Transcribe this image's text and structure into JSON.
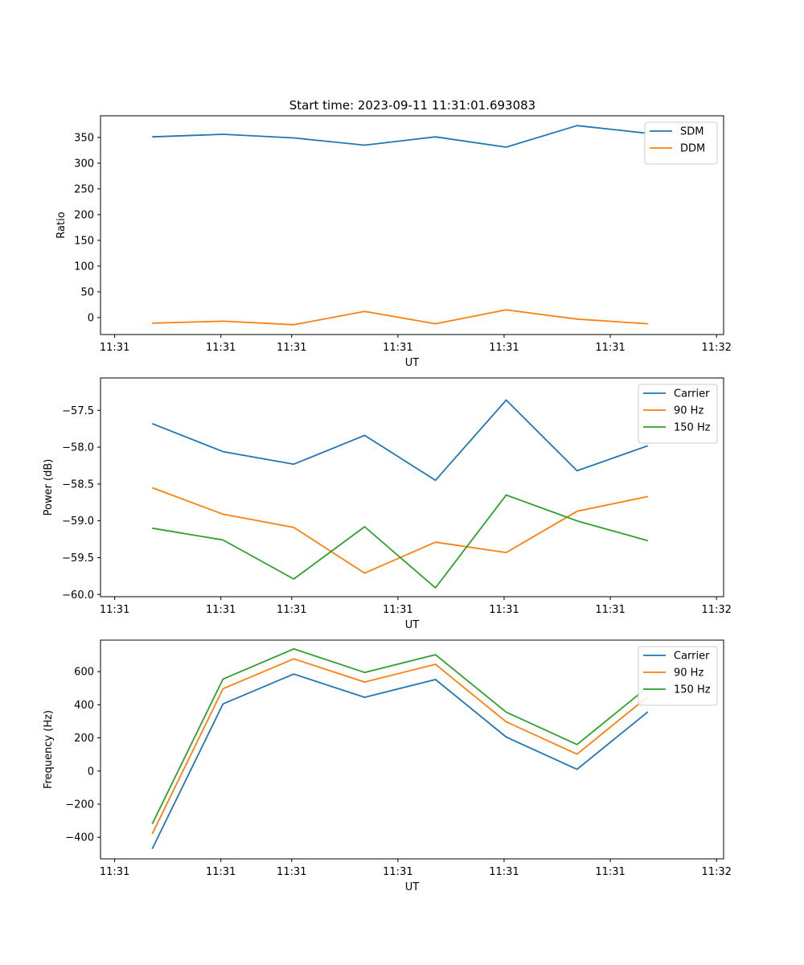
{
  "figure": {
    "title": "Start time: 2023-09-11 11:31:01.693083"
  },
  "colors": {
    "blue": "#1f77b4",
    "orange": "#ff7f0e",
    "green": "#2ca02c"
  },
  "chart_data": [
    {
      "type": "line",
      "title": "Start time: 2023-09-11 11:31:01.693083",
      "xlabel": "UT",
      "ylabel": "Ratio",
      "x": [
        1,
        2,
        3,
        4,
        5,
        6,
        7,
        8
      ],
      "xlim": [
        0.27,
        9.07
      ],
      "ylim": [
        -33,
        392
      ],
      "xticks": [
        {
          "value": 0.47,
          "label": "11:31"
        },
        {
          "value": 1.97,
          "label": "11:31"
        },
        {
          "value": 2.97,
          "label": "11:31"
        },
        {
          "value": 4.47,
          "label": "11:31"
        },
        {
          "value": 5.97,
          "label": "11:31"
        },
        {
          "value": 7.47,
          "label": "11:31"
        },
        {
          "value": 8.97,
          "label": "11:32"
        }
      ],
      "yticks": [
        0,
        50,
        100,
        150,
        200,
        250,
        300,
        350
      ],
      "legend_position": "top-right",
      "series": [
        {
          "name": "SDM",
          "color": "#1f77b4",
          "values": [
            351,
            356,
            349,
            335,
            351,
            331,
            373,
            358
          ]
        },
        {
          "name": "DDM",
          "color": "#ff7f0e",
          "values": [
            -11,
            -7,
            -14,
            12,
            -12,
            15,
            -3,
            -12
          ]
        }
      ]
    },
    {
      "type": "line",
      "title": "",
      "xlabel": "UT",
      "ylabel": "Power (dB)",
      "x": [
        1,
        2,
        3,
        4,
        5,
        6,
        7,
        8
      ],
      "xlim": [
        0.27,
        9.07
      ],
      "ylim": [
        -60.03,
        -57.06
      ],
      "xticks": [
        {
          "value": 0.47,
          "label": "11:31"
        },
        {
          "value": 1.97,
          "label": "11:31"
        },
        {
          "value": 2.97,
          "label": "11:31"
        },
        {
          "value": 4.47,
          "label": "11:31"
        },
        {
          "value": 5.97,
          "label": "11:31"
        },
        {
          "value": 7.47,
          "label": "11:31"
        },
        {
          "value": 8.97,
          "label": "11:32"
        }
      ],
      "yticks": [
        -60.0,
        -59.5,
        -59.0,
        -58.5,
        -58.0,
        -57.5
      ],
      "ytick_labels": [
        "−60.0",
        "−59.5",
        "−59.0",
        "−58.5",
        "−58.0",
        "−57.5"
      ],
      "legend_position": "top-right",
      "series": [
        {
          "name": "Carrier",
          "color": "#1f77b4",
          "values": [
            -57.68,
            -58.06,
            -58.23,
            -57.84,
            -58.45,
            -57.36,
            -58.32,
            -57.98
          ]
        },
        {
          "name": "90 Hz",
          "color": "#ff7f0e",
          "values": [
            -58.55,
            -58.91,
            -59.09,
            -59.71,
            -59.29,
            -59.43,
            -58.87,
            -58.67
          ]
        },
        {
          "name": "150 Hz",
          "color": "#2ca02c",
          "values": [
            -59.1,
            -59.26,
            -59.79,
            -59.08,
            -59.91,
            -58.65,
            -59.0,
            -59.27
          ]
        }
      ]
    },
    {
      "type": "line",
      "title": "",
      "xlabel": "UT",
      "ylabel": "Frequency (Hz)",
      "x": [
        1,
        2,
        3,
        4,
        5,
        6,
        7,
        8
      ],
      "xlim": [
        0.27,
        9.07
      ],
      "ylim": [
        -530,
        790
      ],
      "xticks": [
        {
          "value": 0.47,
          "label": "11:31"
        },
        {
          "value": 1.97,
          "label": "11:31"
        },
        {
          "value": 2.97,
          "label": "11:31"
        },
        {
          "value": 4.47,
          "label": "11:31"
        },
        {
          "value": 5.97,
          "label": "11:31"
        },
        {
          "value": 7.47,
          "label": "11:31"
        },
        {
          "value": 8.97,
          "label": "11:32"
        }
      ],
      "yticks": [
        -400,
        -200,
        0,
        200,
        400,
        600
      ],
      "ytick_labels": [
        "−400",
        "−200",
        "0",
        "200",
        "400",
        "600"
      ],
      "legend_position": "top-right",
      "series": [
        {
          "name": "Carrier",
          "color": "#1f77b4",
          "values": [
            -470,
            405,
            585,
            445,
            552,
            205,
            10,
            357
          ]
        },
        {
          "name": "90 Hz",
          "color": "#ff7f0e",
          "values": [
            -380,
            497,
            677,
            537,
            644,
            297,
            102,
            449
          ]
        },
        {
          "name": "150 Hz",
          "color": "#2ca02c",
          "values": [
            -320,
            555,
            737,
            595,
            702,
            355,
            160,
            507
          ]
        }
      ]
    }
  ]
}
